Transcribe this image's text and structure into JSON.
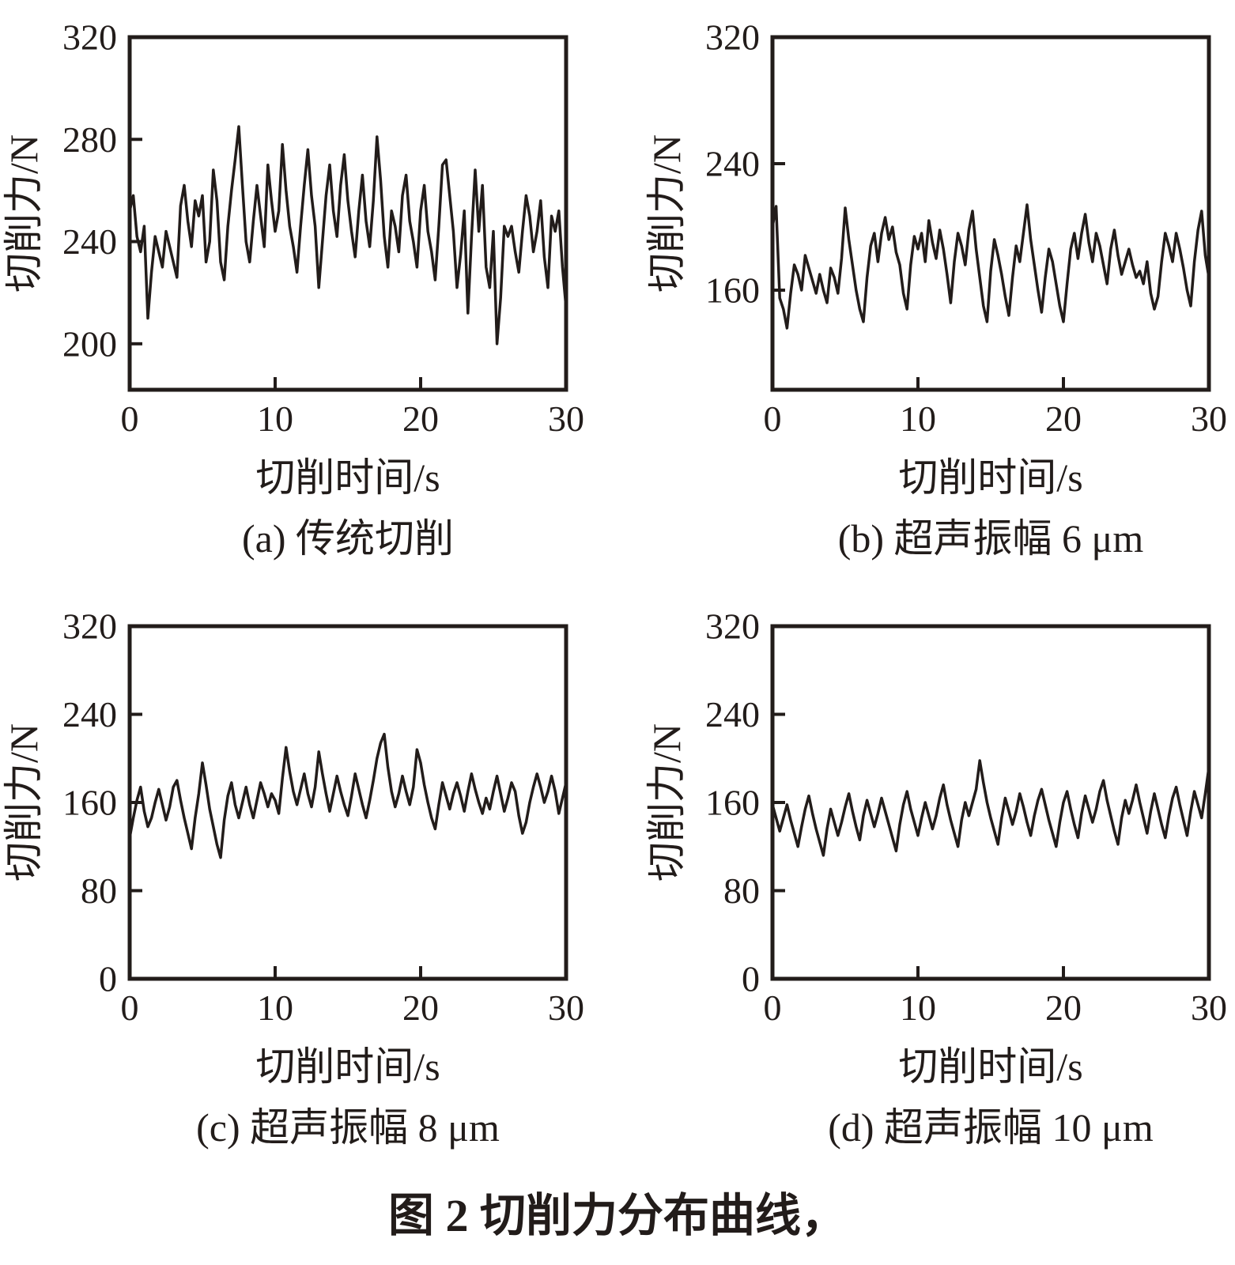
{
  "figure": {
    "caption": "图 2 切削力分布曲线，"
  },
  "axis_labels": {
    "x": "切削时间/s",
    "y": "切削力/N"
  },
  "ink_color": "#221c1a",
  "chart_data": [
    {
      "id": "a",
      "type": "line",
      "caption": "(a) 传统切削",
      "xlabel": "切削时间/s",
      "ylabel": "切削力/N",
      "xlim": [
        0,
        30
      ],
      "ylim": [
        182,
        320
      ],
      "x_ticks": [
        0,
        10,
        20,
        30
      ],
      "y_ticks": [
        200,
        240,
        280,
        320
      ],
      "x_step": 0.25,
      "grid": false,
      "legend": false,
      "values": [
        252,
        258,
        242,
        236,
        246,
        210,
        228,
        242,
        236,
        230,
        244,
        238,
        232,
        226,
        254,
        262,
        248,
        238,
        256,
        250,
        258,
        232,
        240,
        268,
        256,
        232,
        225,
        246,
        260,
        272,
        285,
        262,
        240,
        232,
        248,
        262,
        250,
        238,
        270,
        256,
        244,
        252,
        278,
        260,
        246,
        238,
        228,
        246,
        262,
        276,
        258,
        246,
        222,
        240,
        258,
        270,
        252,
        242,
        262,
        274,
        256,
        244,
        234,
        252,
        266,
        248,
        238,
        256,
        281,
        264,
        242,
        230,
        252,
        246,
        236,
        258,
        266,
        248,
        240,
        230,
        252,
        262,
        244,
        236,
        225,
        246,
        270,
        272,
        258,
        244,
        222,
        235,
        252,
        212,
        242,
        268,
        244,
        262,
        230,
        222,
        244,
        200,
        218,
        246,
        242,
        246,
        236,
        228,
        244,
        258,
        250,
        236,
        244,
        256,
        234,
        222,
        250,
        244,
        252,
        230,
        214
      ]
    },
    {
      "id": "b",
      "type": "line",
      "caption": "(b) 超声振幅 6 μm",
      "xlabel": "切削时间/s",
      "ylabel": "切削力/N",
      "xlim": [
        0,
        30
      ],
      "ylim": [
        97,
        320
      ],
      "x_ticks": [
        0,
        10,
        20,
        30
      ],
      "y_ticks": [
        160,
        240,
        320
      ],
      "x_step": 0.25,
      "grid": false,
      "legend": false,
      "values": [
        200,
        213,
        155,
        148,
        136,
        158,
        176,
        170,
        160,
        182,
        174,
        166,
        158,
        170,
        160,
        152,
        174,
        168,
        158,
        180,
        212,
        192,
        176,
        160,
        148,
        140,
        168,
        188,
        196,
        178,
        196,
        206,
        192,
        200,
        184,
        176,
        158,
        148,
        176,
        194,
        186,
        196,
        178,
        204,
        190,
        180,
        198,
        186,
        170,
        152,
        178,
        196,
        188,
        176,
        198,
        210,
        186,
        168,
        150,
        140,
        172,
        192,
        182,
        170,
        156,
        144,
        168,
        188,
        178,
        196,
        214,
        192,
        176,
        160,
        146,
        168,
        186,
        178,
        164,
        150,
        140,
        164,
        186,
        196,
        180,
        196,
        208,
        190,
        178,
        196,
        188,
        176,
        164,
        186,
        198,
        182,
        170,
        178,
        186,
        176,
        168,
        172,
        164,
        178,
        158,
        148,
        156,
        178,
        196,
        188,
        178,
        196,
        186,
        174,
        160,
        150,
        178,
        198,
        210,
        182,
        168
      ]
    },
    {
      "id": "c",
      "type": "line",
      "caption": "(c) 超声振幅 8 μm",
      "xlabel": "切削时间/s",
      "ylabel": "切削力/N",
      "xlim": [
        0,
        30
      ],
      "ylim": [
        0,
        320
      ],
      "x_ticks": [
        0,
        10,
        20,
        30
      ],
      "y_ticks": [
        0,
        80,
        160,
        240,
        320
      ],
      "x_step": 0.25,
      "grid": false,
      "legend": false,
      "values": [
        128,
        146,
        162,
        174,
        152,
        138,
        146,
        160,
        172,
        158,
        144,
        156,
        174,
        180,
        162,
        146,
        132,
        118,
        146,
        168,
        196,
        176,
        154,
        138,
        122,
        110,
        144,
        166,
        178,
        158,
        146,
        160,
        174,
        158,
        146,
        162,
        178,
        168,
        156,
        168,
        162,
        150,
        182,
        210,
        188,
        170,
        158,
        172,
        186,
        168,
        156,
        174,
        206,
        186,
        168,
        152,
        168,
        184,
        170,
        158,
        148,
        166,
        186,
        172,
        158,
        146,
        162,
        180,
        200,
        214,
        222,
        192,
        170,
        156,
        168,
        184,
        170,
        158,
        174,
        208,
        196,
        176,
        160,
        146,
        136,
        158,
        178,
        166,
        154,
        168,
        178,
        166,
        152,
        170,
        186,
        172,
        160,
        150,
        164,
        154,
        170,
        184,
        168,
        152,
        164,
        178,
        170,
        148,
        132,
        142,
        160,
        174,
        186,
        174,
        160,
        170,
        184,
        170,
        150,
        164,
        178
      ]
    },
    {
      "id": "d",
      "type": "line",
      "caption": "(d) 超声振幅 10 μm",
      "xlabel": "切削时间/s",
      "ylabel": "切削力/N",
      "xlim": [
        0,
        30
      ],
      "ylim": [
        0,
        320
      ],
      "x_ticks": [
        0,
        10,
        20,
        30
      ],
      "y_ticks": [
        0,
        80,
        160,
        240,
        320
      ],
      "x_step": 0.25,
      "grid": false,
      "legend": false,
      "values": [
        158,
        146,
        134,
        146,
        158,
        144,
        132,
        120,
        138,
        154,
        166,
        150,
        136,
        124,
        112,
        136,
        154,
        142,
        130,
        142,
        156,
        168,
        152,
        138,
        126,
        148,
        162,
        150,
        138,
        150,
        164,
        152,
        140,
        128,
        116,
        140,
        158,
        170,
        154,
        142,
        130,
        146,
        160,
        148,
        136,
        148,
        164,
        176,
        158,
        144,
        132,
        120,
        144,
        160,
        148,
        160,
        172,
        198,
        178,
        160,
        146,
        134,
        122,
        146,
        164,
        152,
        140,
        152,
        168,
        156,
        142,
        130,
        148,
        162,
        172,
        158,
        144,
        132,
        120,
        142,
        160,
        170,
        154,
        140,
        128,
        150,
        166,
        154,
        142,
        154,
        170,
        180,
        162,
        148,
        134,
        122,
        146,
        162,
        150,
        162,
        176,
        160,
        146,
        132,
        152,
        168,
        154,
        140,
        128,
        148,
        164,
        174,
        158,
        144,
        130,
        152,
        170,
        158,
        146,
        168,
        192
      ]
    }
  ]
}
